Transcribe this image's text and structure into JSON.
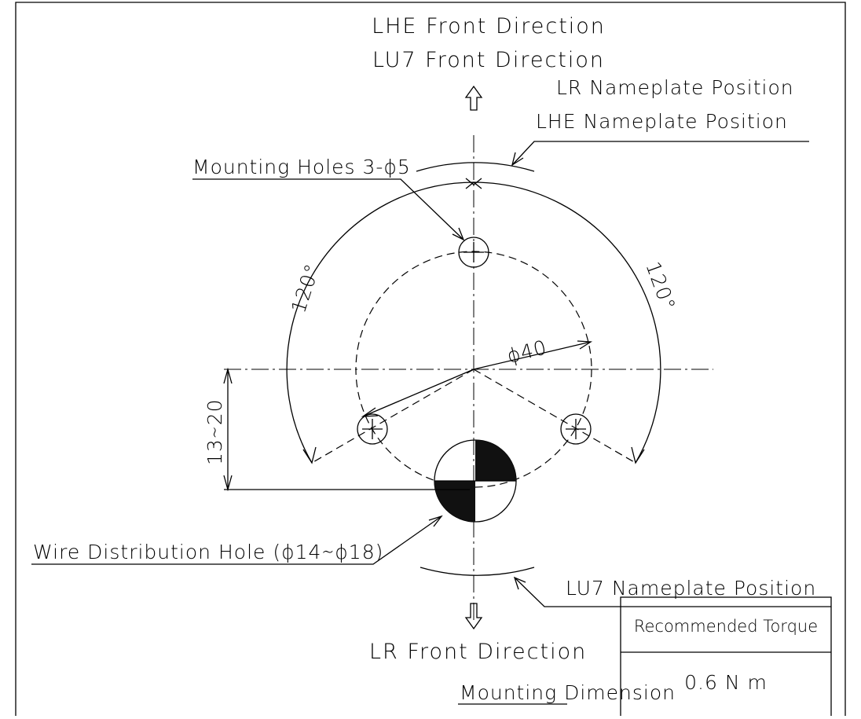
{
  "labels": {
    "lhe_front": "LHE Front Direction",
    "lu7_front": "LU7 Front Direction",
    "lr_nameplate": "LR Nameplate Position",
    "lhe_nameplate": "LHE Nameplate Position",
    "mounting_holes": "Mounting Holes 3-ϕ5",
    "angle_left": "120°",
    "angle_right": "120°",
    "diameter": "ϕ40",
    "offset": "13∼20",
    "wire_hole": "Wire Distribution Hole (ϕ14∼ϕ18)",
    "lu7_nameplate": "LU7 Nameplate Position",
    "lr_front": "LR Front Direction",
    "caption": "Mounting Dimension"
  },
  "table": {
    "header": "Recommended Torque",
    "value": "0.6 N m"
  }
}
